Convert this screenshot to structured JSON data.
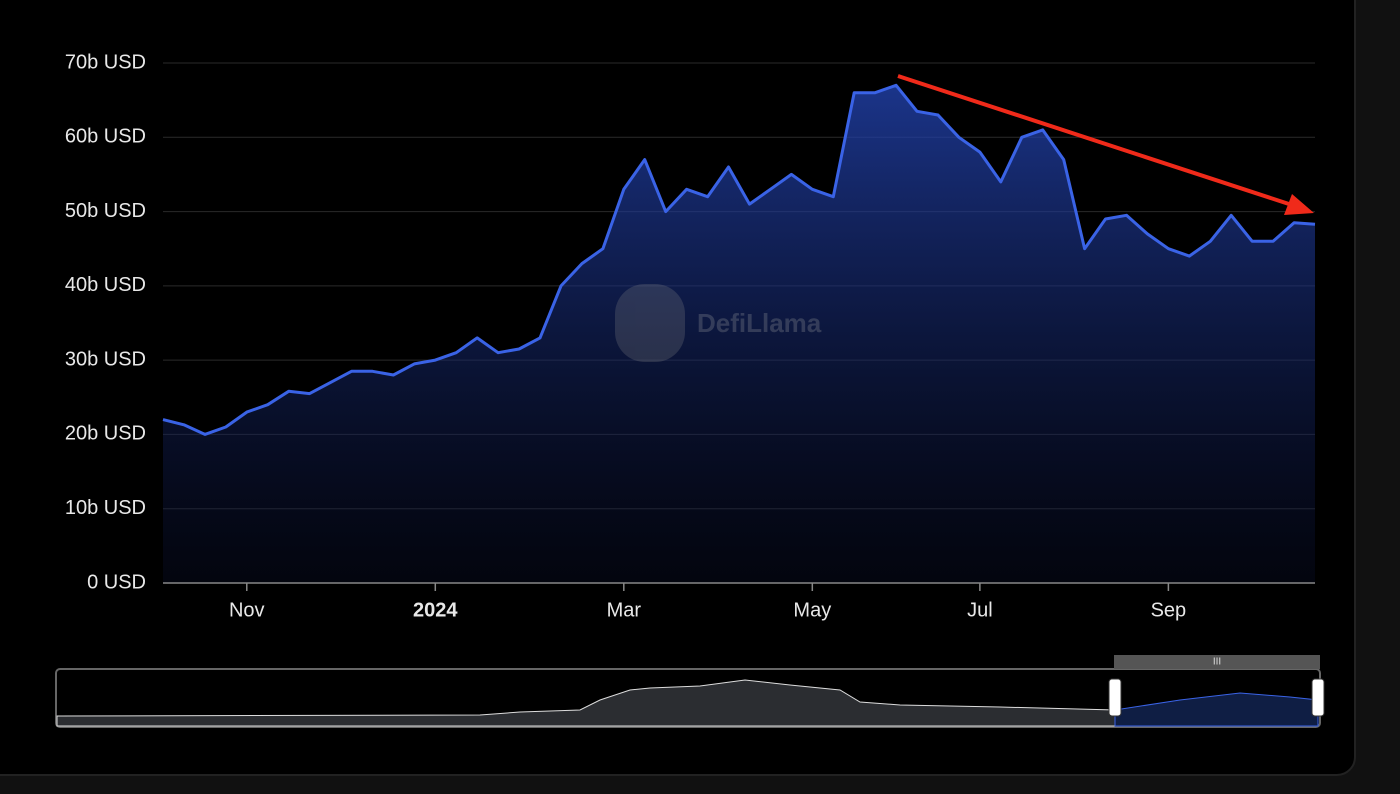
{
  "chart_data": {
    "type": "area",
    "watermark": "DefiLlama",
    "categories": [
      null,
      null,
      null,
      null,
      "Nov",
      null,
      null,
      null,
      null,
      null,
      null,
      null,
      null,
      "2024",
      null,
      null,
      null,
      null,
      null,
      null,
      null,
      null,
      "Mar",
      null,
      null,
      null,
      null,
      null,
      null,
      null,
      null,
      "May",
      null,
      null,
      null,
      null,
      null,
      null,
      null,
      "Jul",
      null,
      null,
      null,
      null,
      null,
      null,
      null,
      null,
      "Sep",
      null,
      null,
      null,
      null,
      null,
      null,
      null
    ],
    "values": [
      22000000000,
      21300000000,
      20000000000,
      21000000000,
      23000000000,
      24000000000,
      25800000000,
      25500000000,
      27000000000,
      28500000000,
      28500000000,
      28000000000,
      29500000000,
      30000000000,
      31000000000,
      33000000000,
      31000000000,
      31500000000,
      33000000000,
      40000000000,
      43000000000,
      45000000000,
      53000000000,
      57000000000,
      50000000000,
      53000000000,
      52000000000,
      56000000000,
      51000000000,
      53000000000,
      55000000000,
      53000000000,
      52000000000,
      66000000000,
      66000000000,
      67000000000,
      63500000000,
      63000000000,
      60000000000,
      58000000000,
      54000000000,
      60000000000,
      61000000000,
      57000000000,
      45000000000,
      49000000000,
      49500000000,
      47000000000,
      45000000000,
      44000000000,
      46000000000,
      49500000000,
      46000000000,
      46000000000,
      48500000000,
      48300000000
    ],
    "color": "#3a63e6",
    "ylim": [
      0,
      70000000000
    ],
    "yticks": [
      {
        "value": 0,
        "label": "0 USD"
      },
      {
        "value": 10000000000,
        "label": "10b USD"
      },
      {
        "value": 20000000000,
        "label": "20b USD"
      },
      {
        "value": 30000000000,
        "label": "30b USD"
      },
      {
        "value": 40000000000,
        "label": "40b USD"
      },
      {
        "value": 50000000000,
        "label": "50b USD"
      },
      {
        "value": 60000000000,
        "label": "60b USD"
      },
      {
        "value": 70000000000,
        "label": "70b USD"
      }
    ],
    "grid": true
  }
}
